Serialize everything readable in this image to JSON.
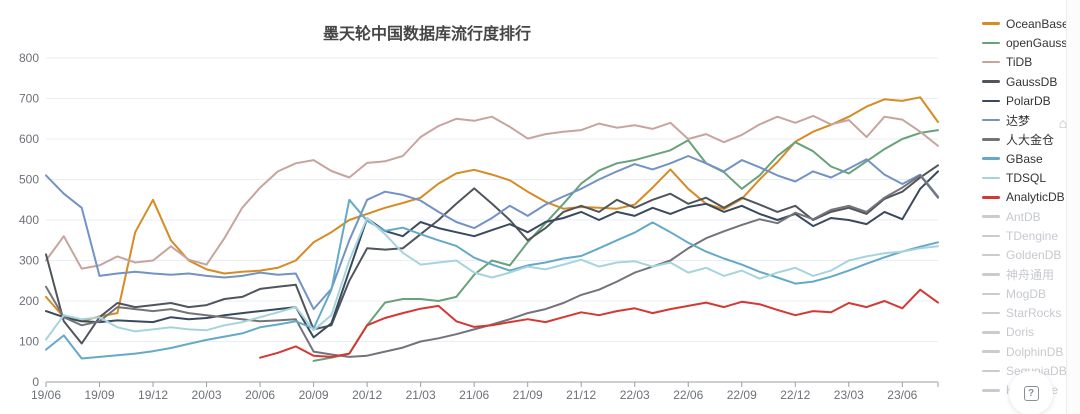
{
  "title": "墨天轮中国数据库流行度排行",
  "widgets": {
    "help_label": "?",
    "home_icon": "⌂"
  },
  "chart_data": {
    "type": "line",
    "title": "墨天轮中国数据库流行度排行",
    "xlabel": "",
    "ylabel": "",
    "ylim": [
      0,
      800
    ],
    "y_ticks": [
      0,
      100,
      200,
      300,
      400,
      500,
      600,
      700,
      800
    ],
    "grid": "horizontal",
    "legend_position": "right",
    "x": [
      "19/06",
      "19/07",
      "19/08",
      "19/09",
      "19/10",
      "19/11",
      "19/12",
      "20/01",
      "20/02",
      "20/03",
      "20/04",
      "20/05",
      "20/06",
      "20/07",
      "20/08",
      "20/09",
      "20/10",
      "20/11",
      "20/12",
      "21/01",
      "21/02",
      "21/03",
      "21/04",
      "21/05",
      "21/06",
      "21/07",
      "21/08",
      "21/09",
      "21/10",
      "21/11",
      "21/12",
      "22/01",
      "22/02",
      "22/03",
      "22/04",
      "22/05",
      "22/06",
      "22/07",
      "22/08",
      "22/09",
      "22/10",
      "22/11",
      "22/12",
      "23/01",
      "23/02",
      "23/03",
      "23/04",
      "23/05",
      "23/06",
      "23/07",
      "23/08"
    ],
    "x_tick_labels": [
      "19/06",
      "19/09",
      "19/12",
      "20/03",
      "20/06",
      "20/09",
      "20/12",
      "21/03",
      "21/06",
      "21/09",
      "21/12",
      "22/03",
      "22/06",
      "22/09",
      "22/12",
      "23/03",
      "23/06"
    ],
    "x_tick_step": 3,
    "series": [
      {
        "name": "OceanBase",
        "color": "#d68b24",
        "active": true,
        "values": [
          210,
          160,
          150,
          162,
          170,
          370,
          450,
          350,
          300,
          278,
          268,
          272,
          275,
          282,
          300,
          345,
          370,
          400,
          415,
          430,
          442,
          455,
          490,
          515,
          524,
          512,
          498,
          470,
          445,
          428,
          432,
          430,
          428,
          438,
          480,
          525,
          477,
          440,
          427,
          452,
          500,
          543,
          593,
          618,
          635,
          655,
          680,
          698,
          694,
          703,
          642
        ]
      },
      {
        "name": "openGauss",
        "color": "#69a17b",
        "active": true,
        "values": [
          null,
          null,
          null,
          null,
          null,
          null,
          null,
          null,
          null,
          null,
          null,
          null,
          null,
          null,
          null,
          52,
          60,
          70,
          140,
          196,
          205,
          205,
          200,
          210,
          265,
          300,
          288,
          345,
          392,
          440,
          490,
          522,
          540,
          548,
          560,
          572,
          597,
          540,
          518,
          477,
          510,
          558,
          592,
          570,
          532,
          515,
          545,
          575,
          600,
          615,
          622
        ]
      },
      {
        "name": "TiDB",
        "color": "#c7a59e",
        "active": true,
        "values": [
          300,
          360,
          280,
          288,
          310,
          295,
          300,
          335,
          302,
          290,
          355,
          430,
          480,
          520,
          540,
          548,
          521,
          505,
          541,
          545,
          558,
          605,
          632,
          650,
          645,
          655,
          630,
          601,
          612,
          618,
          622,
          638,
          628,
          634,
          625,
          640,
          600,
          612,
          592,
          610,
          636,
          655,
          640,
          657,
          636,
          647,
          605,
          655,
          648,
          618,
          583
        ]
      },
      {
        "name": "GaussDB",
        "color": "#50555c",
        "active": true,
        "values": [
          315,
          150,
          95,
          160,
          195,
          185,
          190,
          195,
          185,
          190,
          205,
          210,
          230,
          235,
          240,
          130,
          140,
          250,
          330,
          327,
          330,
          365,
          400,
          440,
          478,
          440,
          400,
          350,
          380,
          420,
          435,
          420,
          450,
          430,
          450,
          465,
          440,
          455,
          430,
          455,
          438,
          420,
          435,
          400,
          420,
          430,
          415,
          452,
          470,
          505,
          535
        ]
      },
      {
        "name": "PolarDB",
        "color": "#3a4a5e",
        "active": true,
        "values": [
          175,
          160,
          150,
          148,
          152,
          150,
          148,
          160,
          155,
          158,
          165,
          170,
          175,
          180,
          185,
          110,
          145,
          275,
          404,
          373,
          360,
          395,
          380,
          370,
          360,
          375,
          390,
          370,
          395,
          405,
          420,
          400,
          420,
          410,
          430,
          415,
          432,
          440,
          420,
          435,
          415,
          400,
          415,
          385,
          405,
          400,
          390,
          420,
          402,
          477,
          520
        ]
      },
      {
        "name": "达梦",
        "color": "#7293c4",
        "active": true,
        "values": [
          510,
          465,
          430,
          262,
          268,
          272,
          268,
          265,
          268,
          262,
          258,
          262,
          270,
          265,
          268,
          180,
          230,
          350,
          450,
          470,
          462,
          448,
          420,
          395,
          380,
          405,
          435,
          410,
          438,
          458,
          477,
          500,
          520,
          538,
          525,
          540,
          558,
          540,
          520,
          548,
          530,
          510,
          495,
          520,
          505,
          527,
          550,
          512,
          489,
          512,
          458
        ]
      },
      {
        "name": "人大金仓",
        "color": "#73737a",
        "active": true,
        "values": [
          235,
          160,
          140,
          150,
          185,
          180,
          175,
          180,
          170,
          165,
          160,
          155,
          150,
          152,
          155,
          75,
          68,
          62,
          65,
          75,
          85,
          100,
          108,
          118,
          130,
          142,
          155,
          170,
          180,
          195,
          215,
          228,
          248,
          270,
          285,
          300,
          330,
          355,
          372,
          388,
          402,
          392,
          418,
          402,
          425,
          435,
          420,
          455,
          480,
          510,
          455
        ]
      },
      {
        "name": "GBase",
        "color": "#64aac8",
        "active": true,
        "values": [
          80,
          115,
          58,
          62,
          66,
          70,
          76,
          84,
          94,
          104,
          112,
          120,
          135,
          142,
          150,
          132,
          228,
          450,
          398,
          373,
          381,
          365,
          350,
          336,
          307,
          290,
          275,
          288,
          295,
          305,
          311,
          330,
          350,
          369,
          394,
          370,
          344,
          322,
          305,
          290,
          272,
          258,
          243,
          248,
          260,
          275,
          292,
          308,
          322,
          334,
          345
        ]
      },
      {
        "name": "TDSQL",
        "color": "#a6d4dd",
        "active": true,
        "values": [
          105,
          165,
          155,
          160,
          135,
          125,
          130,
          135,
          130,
          128,
          140,
          148,
          160,
          172,
          185,
          128,
          165,
          300,
          405,
          365,
          319,
          290,
          295,
          300,
          270,
          258,
          270,
          285,
          278,
          290,
          302,
          285,
          295,
          298,
          285,
          295,
          270,
          282,
          262,
          275,
          255,
          270,
          282,
          262,
          275,
          300,
          310,
          318,
          322,
          330,
          335
        ]
      },
      {
        "name": "AnalyticDB",
        "color": "#d43834",
        "active": true,
        "values": [
          null,
          null,
          null,
          null,
          null,
          null,
          null,
          null,
          null,
          null,
          null,
          null,
          60,
          72,
          88,
          65,
          62,
          70,
          140,
          158,
          170,
          181,
          188,
          150,
          136,
          140,
          148,
          155,
          148,
          160,
          172,
          165,
          175,
          182,
          170,
          180,
          188,
          196,
          185,
          198,
          192,
          178,
          165,
          175,
          172,
          195,
          185,
          200,
          182,
          228,
          196
        ]
      },
      {
        "name": "AntDB",
        "color": "#c8cbd0",
        "active": false,
        "values": []
      },
      {
        "name": "TDengine",
        "color": "#c8cbd0",
        "active": false,
        "values": []
      },
      {
        "name": "GoldenDB",
        "color": "#c8cbd0",
        "active": false,
        "values": []
      },
      {
        "name": "神舟通用",
        "color": "#c8cbd0",
        "active": false,
        "values": []
      },
      {
        "name": "MogDB",
        "color": "#c8cbd0",
        "active": false,
        "values": []
      },
      {
        "name": "StarRocks",
        "color": "#c8cbd0",
        "active": false,
        "values": []
      },
      {
        "name": "Doris",
        "color": "#c8cbd0",
        "active": false,
        "values": []
      },
      {
        "name": "DolphinDB",
        "color": "#c8cbd0",
        "active": false,
        "values": []
      },
      {
        "name": "SequoiaDB",
        "color": "#c8cbd0",
        "active": false,
        "values": []
      },
      {
        "name": "Kyligence",
        "color": "#c8cbd0",
        "active": false,
        "values": []
      }
    ]
  }
}
